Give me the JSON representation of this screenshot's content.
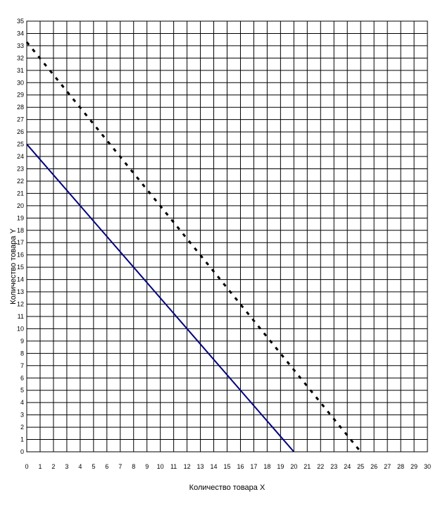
{
  "chart_data": {
    "type": "line",
    "title": "",
    "xlabel": "Количество товара X",
    "ylabel": "Количество товара Y",
    "xlim": [
      0,
      30
    ],
    "ylim": [
      0,
      35
    ],
    "x_ticks": [
      0,
      1,
      2,
      3,
      4,
      5,
      6,
      7,
      8,
      9,
      10,
      11,
      12,
      13,
      14,
      15,
      16,
      17,
      18,
      19,
      20,
      21,
      22,
      23,
      24,
      25,
      26,
      27,
      28,
      29,
      30
    ],
    "y_ticks": [
      0,
      1,
      2,
      3,
      4,
      5,
      6,
      7,
      8,
      9,
      10,
      11,
      12,
      13,
      14,
      15,
      16,
      17,
      18,
      19,
      20,
      21,
      22,
      23,
      24,
      25,
      26,
      27,
      28,
      29,
      30,
      31,
      32,
      33,
      34,
      35
    ],
    "grid": true,
    "legend": "none",
    "series": [
      {
        "x": [
          0,
          20
        ],
        "y": [
          25,
          0
        ],
        "style": "solid",
        "color": "#000080"
      },
      {
        "x": [
          0,
          25
        ],
        "y": [
          33.3,
          0
        ],
        "style": "dashed",
        "color": "#000000"
      }
    ]
  }
}
